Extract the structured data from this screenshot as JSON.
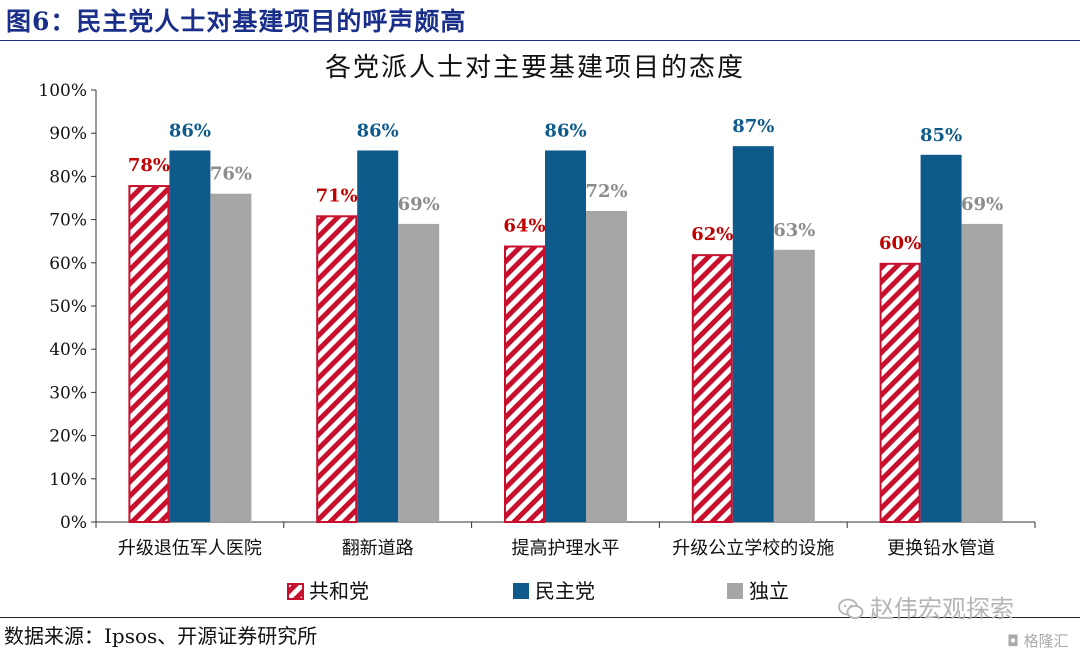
{
  "figure": {
    "title": "图6：民主党人士对基建项目的呼声颇高",
    "source": "数据来源：Ipsos、开源证券研究所",
    "watermark": "赵伟宏观探索",
    "brand": "格隆汇"
  },
  "colors": {
    "title": "#1a2f8a",
    "republican": "#c8102e",
    "democrat": "#0e5a8a",
    "independent": "#a6a6a6",
    "value_republican": "#c00000",
    "value_democrat": "#0e5a8a",
    "value_independent": "#8c8c8c"
  },
  "chart_data": {
    "type": "bar",
    "title": "各党派人士对主要基建项目的态度",
    "xlabel": "",
    "ylabel": "",
    "ylim": [
      0,
      100
    ],
    "yticks": [
      "0%",
      "10%",
      "20%",
      "30%",
      "40%",
      "50%",
      "60%",
      "70%",
      "80%",
      "90%",
      "100%"
    ],
    "categories": [
      "升级退伍军人医院",
      "翻新道路",
      "提高护理水平",
      "升级公立学校的设施",
      "更换铅水管道"
    ],
    "series": [
      {
        "name": "共和党",
        "values": [
          78,
          71,
          64,
          62,
          60
        ],
        "labels": [
          "78%",
          "71%",
          "64%",
          "62%",
          "60%"
        ],
        "pattern": "hatched"
      },
      {
        "name": "民主党",
        "values": [
          86,
          86,
          86,
          87,
          85
        ],
        "labels": [
          "86%",
          "86%",
          "86%",
          "87%",
          "85%"
        ],
        "pattern": "solid"
      },
      {
        "name": "独立",
        "values": [
          76,
          69,
          72,
          63,
          69
        ],
        "labels": [
          "76%",
          "69%",
          "72%",
          "63%",
          "69%"
        ],
        "pattern": "solid"
      }
    ],
    "legend_position": "bottom",
    "grid": false
  }
}
